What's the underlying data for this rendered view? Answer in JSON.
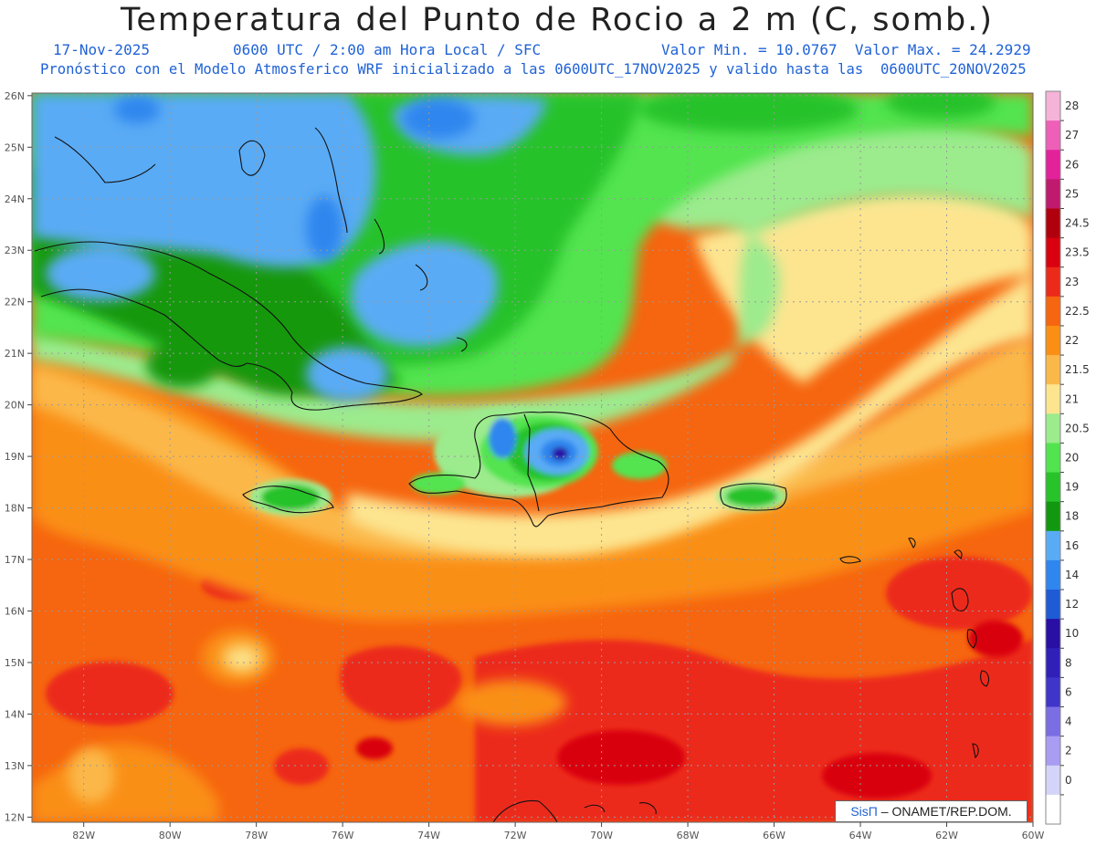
{
  "header": {
    "title": "Temperatura del Punto de Rocio a 2 m (C, somb.)",
    "date": "17-Nov-2025",
    "time_info": "0600 UTC / 2:00 am Hora Local / SFC",
    "value_range": "Valor Min. = 10.0767  Valor Max. = 24.2929",
    "model_info": "Pronóstico con el Modelo Atmosferico WRF inicializado a las 0600UTC_17NOV2025 y valido hasta las  0600UTC_20NOV2025"
  },
  "axes": {
    "lon_labels": [
      "82W",
      "80W",
      "78W",
      "76W",
      "74W",
      "72W",
      "70W",
      "68W",
      "66W",
      "64W",
      "62W",
      "60W"
    ],
    "lon_values": [
      -82,
      -80,
      -78,
      -76,
      -74,
      -72,
      -70,
      -68,
      -66,
      -64,
      -62,
      -60
    ],
    "lat_labels": [
      "26N",
      "25N",
      "24N",
      "23N",
      "22N",
      "21N",
      "20N",
      "19N",
      "18N",
      "17N",
      "16N",
      "15N",
      "14N",
      "13N",
      "12N"
    ],
    "lat_values": [
      26,
      25,
      24,
      23,
      22,
      21,
      20,
      19,
      18,
      17,
      16,
      15,
      14,
      13,
      12
    ],
    "lon_range": [
      -83.2,
      -60
    ],
    "lat_range": [
      11.9,
      26.05
    ]
  },
  "colorbar": {
    "labels": [
      "28",
      "27",
      "26",
      "25",
      "24.5",
      "23.5",
      "23",
      "22.5",
      "22",
      "21.5",
      "21",
      "20.5",
      "20",
      "19",
      "18",
      "16",
      "14",
      "12",
      "10",
      "8",
      "6",
      "4",
      "2",
      "0"
    ],
    "colors": [
      "#f5b3d7",
      "#ee5fb8",
      "#e3219a",
      "#c01a6e",
      "#b0000d",
      "#d9000f",
      "#ec2a1a",
      "#f6650f",
      "#fa8f14",
      "#fbb84a",
      "#fde590",
      "#9ceb8d",
      "#52e44f",
      "#28c22a",
      "#129810",
      "#5aabf5",
      "#2f86ee",
      "#1e5bd5",
      "#2a0fa4",
      "#3020b8",
      "#3f35c8",
      "#7b6ee3",
      "#a89cf3",
      "#d4d4f8",
      "#ffffff"
    ]
  },
  "map_features": {
    "label_icon": "temperature-shading",
    "cities_icon": "island-outline-icon"
  },
  "footer": {
    "credit_sis": "SisΠ",
    "credit_rest": "– ONAMET/REP.DOM."
  }
}
